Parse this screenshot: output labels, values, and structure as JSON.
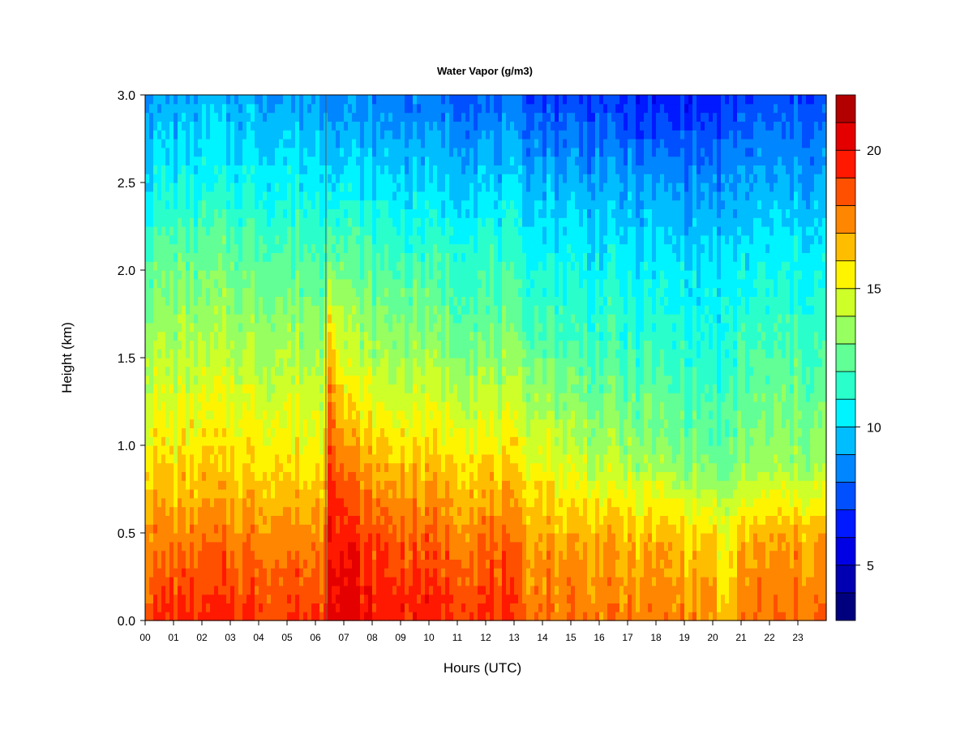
{
  "chart_data": {
    "type": "heatmap",
    "title": "Water Vapor (g/m3)",
    "xlabel": "Hours (UTC)",
    "ylabel": "Height (km)",
    "xlim": [
      0,
      24
    ],
    "ylim": [
      0,
      3.0
    ],
    "x_ticks": [
      "00",
      "01",
      "02",
      "03",
      "04",
      "05",
      "06",
      "07",
      "08",
      "09",
      "10",
      "11",
      "12",
      "13",
      "14",
      "15",
      "16",
      "17",
      "18",
      "19",
      "20",
      "21",
      "22",
      "23"
    ],
    "y_ticks": [
      "0.0",
      "0.5",
      "1.0",
      "1.5",
      "2.0",
      "2.5",
      "3.0"
    ],
    "colorbar": {
      "range": [
        3,
        22
      ],
      "levels": [
        3,
        4,
        5,
        6,
        7,
        8,
        9,
        10,
        11,
        12,
        13,
        14,
        15,
        16,
        17,
        18,
        19,
        20,
        21,
        22
      ],
      "tick_values": [
        5,
        10,
        15,
        20
      ],
      "tick_labels": [
        "5",
        "10",
        "15",
        "20"
      ],
      "colors": [
        "#00007F",
        "#0000B2",
        "#0000E5",
        "#0019FF",
        "#0050FF",
        "#0086FF",
        "#00BDFF",
        "#00F4FF",
        "#2AFFCC",
        "#61FF96",
        "#97FF5F",
        "#CEFF28",
        "#FFF400",
        "#FFBD00",
        "#FF8600",
        "#FF5000",
        "#FF1900",
        "#E50000",
        "#B20000",
        "#7F0000"
      ]
    },
    "profiles": [
      {
        "hour": 0,
        "values": [
          19.2,
          17.6,
          15.8,
          14.6,
          13.4,
          12.2,
          10.6,
          9.0
        ]
      },
      {
        "hour": 3,
        "values": [
          19.3,
          17.8,
          16.0,
          14.8,
          13.6,
          12.4,
          10.8,
          9.2
        ]
      },
      {
        "hour": 6.3,
        "values": [
          19.0,
          17.6,
          15.6,
          14.4,
          13.2,
          12.0,
          10.6,
          9.0
        ]
      },
      {
        "hour": 6.5,
        "values": [
          21.0,
          20.6,
          19.6,
          18.4,
          16.4,
          13.2,
          10.8,
          9.2
        ]
      },
      {
        "hour": 7.0,
        "values": [
          20.6,
          19.8,
          17.8,
          15.6,
          13.8,
          12.2,
          10.4,
          8.6
        ]
      },
      {
        "hour": 8.0,
        "values": [
          19.8,
          18.8,
          16.6,
          14.6,
          13.2,
          11.8,
          10.2,
          8.4
        ]
      },
      {
        "hour": 10.0,
        "values": [
          19.6,
          18.2,
          16.2,
          14.4,
          12.8,
          11.6,
          10.0,
          8.0
        ]
      },
      {
        "hour": 12.8,
        "values": [
          19.2,
          17.8,
          15.8,
          14.0,
          12.4,
          11.4,
          9.8,
          7.8
        ]
      },
      {
        "hour": 13.2,
        "values": [
          18.2,
          17.2,
          15.6,
          13.8,
          12.2,
          11.0,
          9.6,
          7.6
        ]
      },
      {
        "hour": 16.0,
        "values": [
          17.8,
          16.8,
          14.2,
          12.6,
          11.4,
          10.4,
          9.2,
          7.0
        ]
      },
      {
        "hour": 18.0,
        "values": [
          17.6,
          16.6,
          13.6,
          12.2,
          11.2,
          10.2,
          8.8,
          6.2
        ]
      },
      {
        "hour": 20.0,
        "values": [
          17.4,
          16.4,
          12.8,
          11.8,
          10.8,
          10.0,
          8.6,
          6.4
        ]
      },
      {
        "hour": 20.5,
        "values": [
          15.6,
          14.6,
          12.2,
          11.4,
          10.6,
          9.8,
          8.4,
          6.6
        ]
      },
      {
        "hour": 21.0,
        "values": [
          17.8,
          16.8,
          13.4,
          12.4,
          11.4,
          10.4,
          9.0,
          7.0
        ]
      },
      {
        "hour": 23.8,
        "values": [
          18.0,
          17.0,
          13.6,
          12.6,
          11.6,
          10.6,
          9.2,
          7.4
        ]
      }
    ],
    "profile_heights": [
      0.0,
      0.45,
      0.9,
      1.3,
      1.7,
      2.1,
      2.5,
      3.0
    ]
  }
}
